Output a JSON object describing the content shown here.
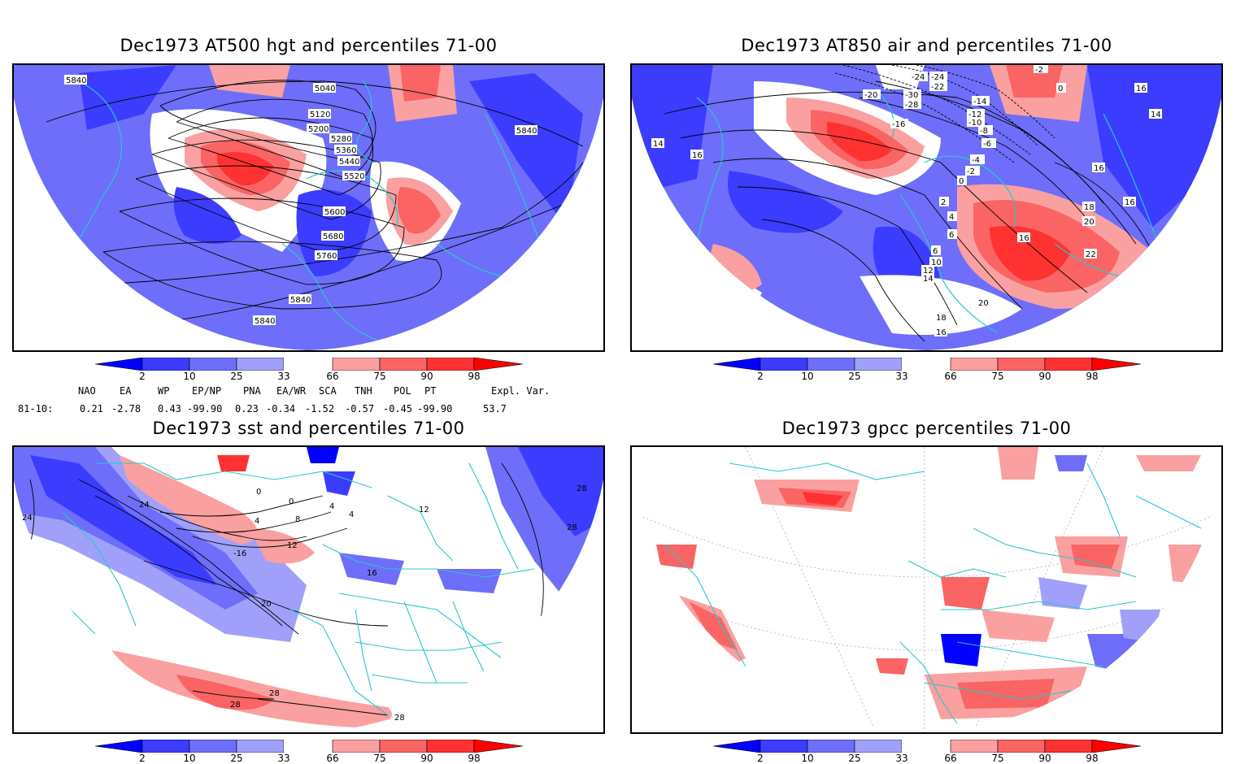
{
  "colors": {
    "blue_2": "#0000ff",
    "blue_10": "#3c3cff",
    "blue_25": "#6e6efa",
    "blue_33": "#a0a0fa",
    "white": "#ffffff",
    "red_66": "#faa0a0",
    "red_75": "#fa6464",
    "red_90": "#ff3232",
    "red_98": "#ff0000",
    "coast": "#28c8c8",
    "contour": "#000000"
  },
  "colorbar": {
    "labels": [
      "2",
      "10",
      "25",
      "33",
      "66",
      "75",
      "90",
      "98"
    ]
  },
  "panels": [
    {
      "title": "Dec1973 AT500 hgt and percentiles 71-00",
      "contour_labels": [
        "5840",
        "5040",
        "5120",
        "5200",
        "5280",
        "5360",
        "5440",
        "5520",
        "5600",
        "5680",
        "5760",
        "5840",
        "5840",
        "5840"
      ]
    },
    {
      "title": "Dec1973 AT850 air and percentiles 71-00",
      "contour_labels": [
        "-24",
        "-24",
        "-22",
        "-30",
        "-28",
        "-20",
        "-16",
        "-14",
        "-12",
        "-10",
        "-8",
        "-6",
        "-4",
        "-2",
        "0",
        "2",
        "4",
        "6",
        "6",
        "10",
        "12",
        "14",
        "14",
        "16",
        "16",
        "16",
        "16",
        "18",
        "20",
        "22",
        "16",
        "18",
        "20",
        "-2",
        "0",
        "14",
        "16"
      ]
    },
    {
      "title": "Dec1973 sst and percentiles 71-00",
      "contour_labels": [
        "24",
        "24",
        "0",
        "0",
        "-16",
        "4",
        "8",
        "4",
        "12",
        "16",
        "20",
        "28",
        "28",
        "28",
        "28",
        "28",
        "12",
        "4"
      ]
    },
    {
      "title": "Dec1973 gpcc percentiles 71-00",
      "contour_labels": []
    }
  ],
  "teleconnections": {
    "headers": [
      "NAO",
      "EA",
      "WP",
      "EP/NP",
      "PNA",
      "EA/WR",
      "SCA",
      "TNH",
      "POL",
      "PT",
      "Expl. Var."
    ],
    "row_label": "81-10:",
    "values": [
      "0.21",
      "-2.78",
      "0.43",
      "-99.90",
      "0.23",
      "-0.34",
      "-1.52",
      "-0.57",
      "-0.45",
      "-99.90",
      "53.7"
    ]
  }
}
